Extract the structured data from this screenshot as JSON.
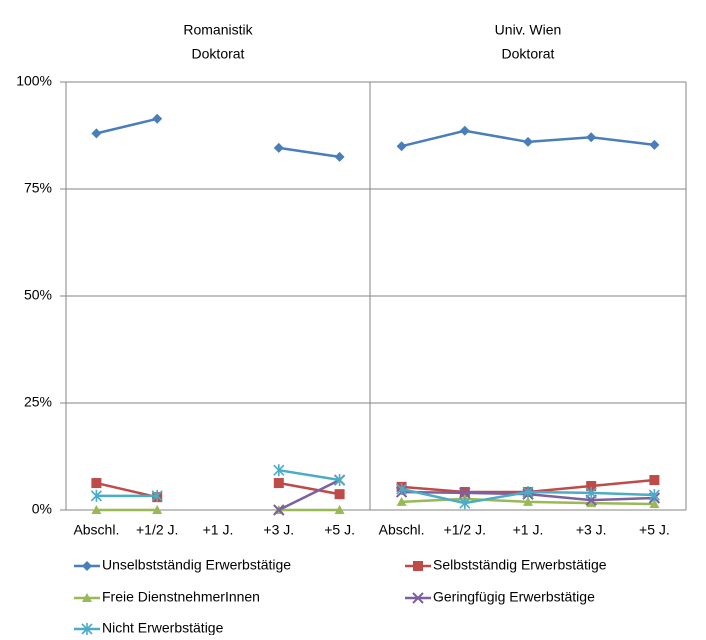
{
  "chart_data": [
    {
      "type": "line",
      "title": "Romanistik",
      "subtitle": "Doktorat",
      "legend": "bottom",
      "grid": true,
      "categories": [
        "Abschl.",
        "+1/2 J.",
        "+1 J.",
        "+3 J.",
        "+5 J."
      ],
      "ylim": [
        0,
        100
      ],
      "yticks": [
        {
          "value": 0,
          "label": "0%"
        },
        {
          "value": 25,
          "label": "25%"
        },
        {
          "value": 50,
          "label": "50%"
        },
        {
          "value": 75,
          "label": "75%"
        },
        {
          "value": 100,
          "label": "100%"
        }
      ],
      "series": [
        {
          "name": "Unselbstständig Erwerbstätige",
          "color": "#4a7ebb",
          "marker": "diamond",
          "values": [
            88,
            91.4,
            null,
            84.6,
            82.5
          ]
        },
        {
          "name": "Selbstständig Erwerbstätige",
          "color": "#be4b48",
          "marker": "square",
          "values": [
            6.3,
            3.0,
            null,
            6.3,
            3.7
          ]
        },
        {
          "name": "Freie DienstnehmerInnen",
          "color": "#98b954",
          "marker": "triangle",
          "values": [
            0,
            0,
            null,
            0,
            0
          ]
        },
        {
          "name": "Geringfügig Erwerbstätige",
          "color": "#7d60a0",
          "marker": "x",
          "values": [
            null,
            null,
            null,
            0,
            7
          ]
        },
        {
          "name": "Nicht Erwerbstätige",
          "color": "#4bacc6",
          "marker": "star",
          "values": [
            3.3,
            3.3,
            null,
            9.3,
            7
          ]
        }
      ]
    },
    {
      "type": "line",
      "title": "Univ. Wien",
      "subtitle": "Doktorat",
      "grid": true,
      "categories": [
        "Abschl.",
        "+1/2 J.",
        "+1 J.",
        "+3 J.",
        "+5 J."
      ],
      "ylim": [
        0,
        100
      ],
      "series": [
        {
          "color": "#4a7ebb",
          "marker": "diamond",
          "values": [
            85,
            88.6,
            86,
            87.1,
            85.3
          ]
        },
        {
          "color": "#be4b48",
          "marker": "square",
          "values": [
            5.4,
            4.2,
            4.2,
            5.6,
            7.0
          ]
        },
        {
          "color": "#98b954",
          "marker": "triangle",
          "values": [
            1.9,
            2.6,
            1.9,
            1.6,
            1.4
          ]
        },
        {
          "color": "#7d60a0",
          "marker": "x",
          "values": [
            4.2,
            4.0,
            3.7,
            2.3,
            2.8
          ]
        },
        {
          "color": "#4bacc6",
          "marker": "star",
          "values": [
            4.9,
            1.6,
            4.2,
            4.0,
            3.5
          ]
        }
      ]
    }
  ]
}
